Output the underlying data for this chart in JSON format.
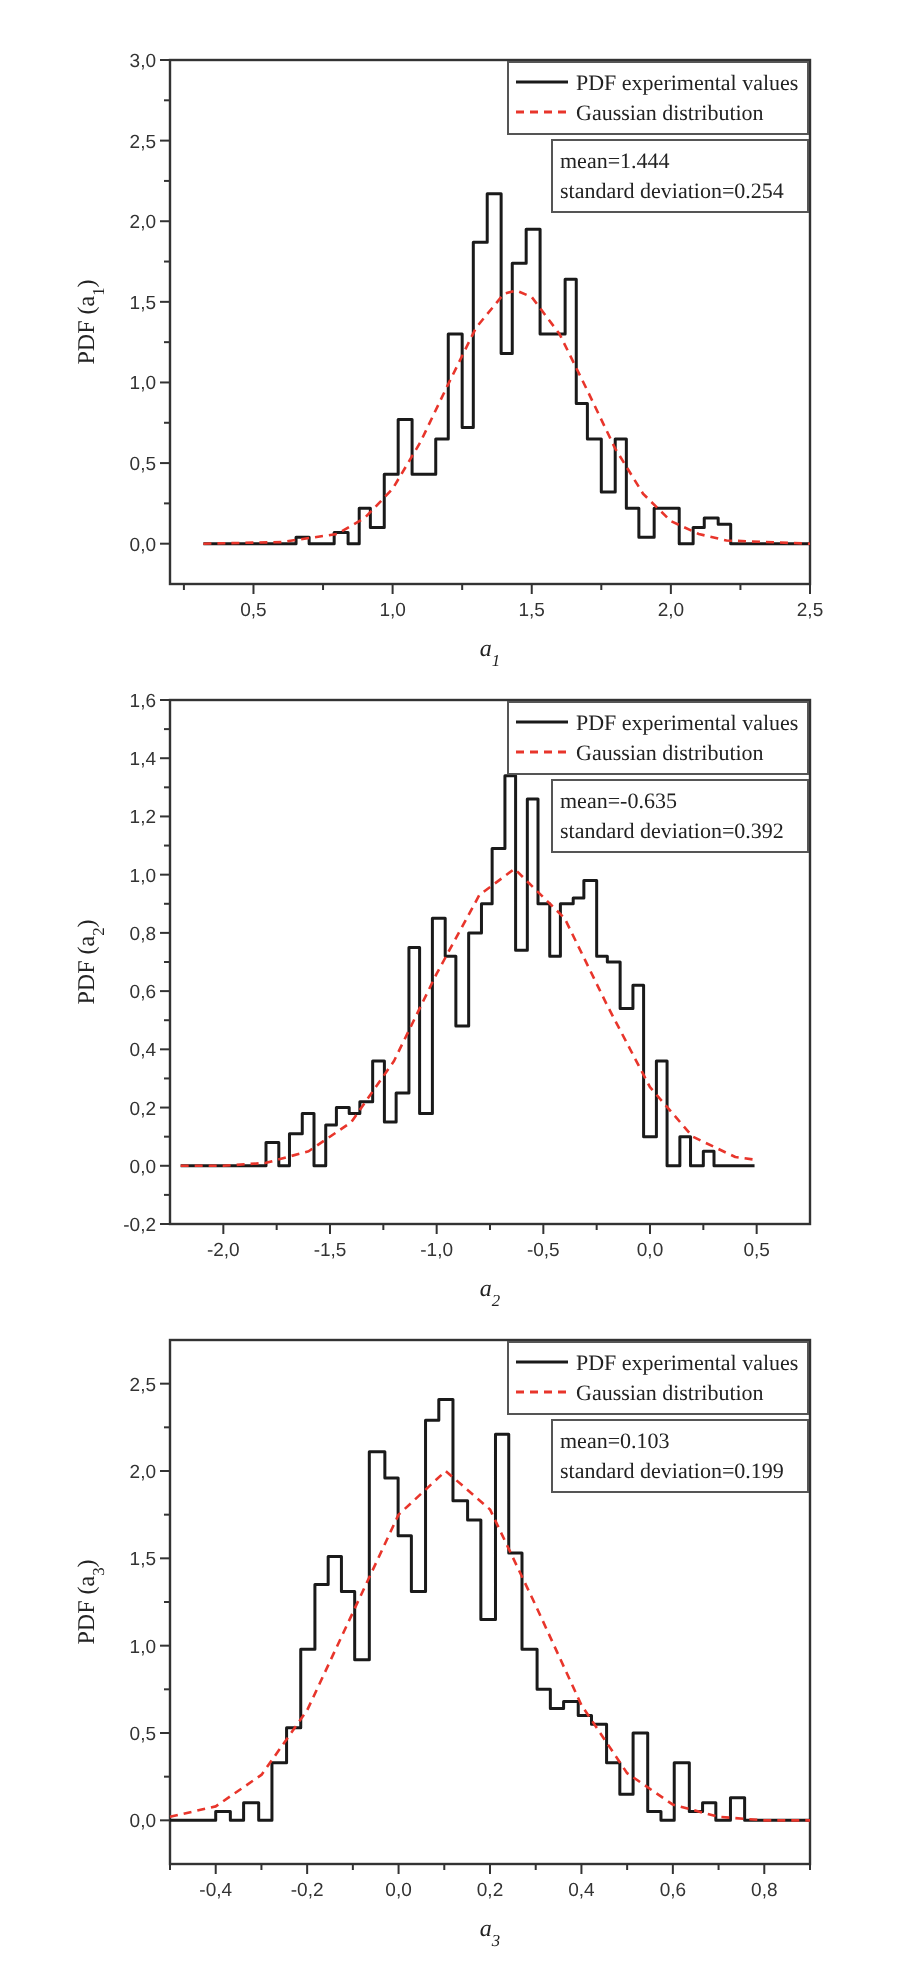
{
  "chart_data": [
    {
      "type": "step",
      "xlabel": "a$_{1}$",
      "ylabel": "PDF (a$_{1}$)",
      "xlim": [
        0.2,
        2.5
      ],
      "ylim": [
        -0.25,
        3.0
      ],
      "xticks": [
        {
          "value": 0.25,
          "label": null
        },
        {
          "value": 0.5,
          "label": "0,5"
        },
        {
          "value": 0.75,
          "label": null
        },
        {
          "value": 1.0,
          "label": "1,0"
        },
        {
          "value": 1.25,
          "label": null
        },
        {
          "value": 1.5,
          "label": "1,5"
        },
        {
          "value": 1.75,
          "label": null
        },
        {
          "value": 2.0,
          "label": "2,0"
        },
        {
          "value": 2.25,
          "label": null
        },
        {
          "value": 2.5,
          "label": "2,5"
        }
      ],
      "yticks": [
        {
          "value": 0,
          "label": "0,0"
        },
        {
          "value": 0.25,
          "label": null
        },
        {
          "value": 0.5,
          "label": "0,5"
        },
        {
          "value": 0.75,
          "label": null
        },
        {
          "value": 1.0,
          "label": "1,0"
        },
        {
          "value": 1.25,
          "label": null
        },
        {
          "value": 1.5,
          "label": "1,5"
        },
        {
          "value": 1.75,
          "label": null
        },
        {
          "value": 2.0,
          "label": "2,0"
        },
        {
          "value": 2.25,
          "label": null
        },
        {
          "value": 2.5,
          "label": "2,5"
        },
        {
          "value": 2.75,
          "label": null
        },
        {
          "value": 3.0,
          "label": "3,0"
        }
      ],
      "legend": "top right",
      "grid": false,
      "annotations": [
        "mean=1.444",
        "standard deviation=0.254"
      ],
      "series": [
        {
          "name": "PDF experimental values",
          "type": "step",
          "color": "#1a1a1a",
          "line_style": "solid",
          "x": [
            0.32,
            0.653,
            0.7,
            0.79,
            0.84,
            0.88,
            0.92,
            0.97,
            1.02,
            1.07,
            1.155,
            1.2,
            1.25,
            1.29,
            1.34,
            1.39,
            1.43,
            1.48,
            1.53,
            1.62,
            1.66,
            1.7,
            1.75,
            1.8,
            1.84,
            1.885,
            1.94,
            2.03,
            2.08,
            2.12,
            2.17,
            2.215,
            2.5
          ],
          "values": [
            0,
            0.04,
            0,
            0.07,
            0,
            0.22,
            0.1,
            0.43,
            0.77,
            0.43,
            0.65,
            1.3,
            0.72,
            1.87,
            2.17,
            1.18,
            1.74,
            1.95,
            1.3,
            1.64,
            0.87,
            0.65,
            0.32,
            0.65,
            0.22,
            0.04,
            0.22,
            0,
            0.1,
            0.16,
            0.12,
            0,
            0
          ]
        },
        {
          "name": "Gaussian distribution",
          "type": "line",
          "color": "#e8352b",
          "line_style": "dashed",
          "x": [
            0.32,
            0.6,
            0.8,
            0.9,
            1.0,
            1.1,
            1.2,
            1.3,
            1.4,
            1.444,
            1.5,
            1.6,
            1.7,
            1.8,
            1.9,
            2.0,
            2.1,
            2.2,
            2.5
          ],
          "values": [
            0,
            0.01,
            0.06,
            0.16,
            0.34,
            0.63,
            0.99,
            1.34,
            1.55,
            1.57,
            1.53,
            1.3,
            0.95,
            0.59,
            0.31,
            0.14,
            0.06,
            0.02,
            0
          ]
        }
      ]
    },
    {
      "type": "step",
      "xlabel": "a$_{2}$",
      "ylabel": "PDF (a$_{2}$)",
      "xlim": [
        -2.25,
        0.75
      ],
      "ylim": [
        -0.2,
        1.6
      ],
      "xticks": [
        {
          "value": -2.0,
          "label": "-2,0"
        },
        {
          "value": -1.75,
          "label": null
        },
        {
          "value": -1.5,
          "label": "-1,5"
        },
        {
          "value": -1.25,
          "label": null
        },
        {
          "value": -1.0,
          "label": "-1,0"
        },
        {
          "value": -0.75,
          "label": null
        },
        {
          "value": -0.5,
          "label": "-0,5"
        },
        {
          "value": -0.25,
          "label": null
        },
        {
          "value": 0,
          "label": "0,0"
        },
        {
          "value": 0.25,
          "label": null
        },
        {
          "value": 0.5,
          "label": "0,5"
        }
      ],
      "yticks": [
        {
          "value": -0.2,
          "label": "-0,2"
        },
        {
          "value": -0.1,
          "label": null
        },
        {
          "value": 0,
          "label": "0,0"
        },
        {
          "value": 0.1,
          "label": null
        },
        {
          "value": 0.2,
          "label": "0,2"
        },
        {
          "value": 0.3,
          "label": null
        },
        {
          "value": 0.4,
          "label": "0,4"
        },
        {
          "value": 0.5,
          "label": null
        },
        {
          "value": 0.6,
          "label": "0,6"
        },
        {
          "value": 0.7,
          "label": null
        },
        {
          "value": 0.8,
          "label": "0,8"
        },
        {
          "value": 0.9,
          "label": null
        },
        {
          "value": 1.0,
          "label": "1,0"
        },
        {
          "value": 1.1,
          "label": null
        },
        {
          "value": 1.2,
          "label": "1,2"
        },
        {
          "value": 1.3,
          "label": null
        },
        {
          "value": 1.4,
          "label": "1,4"
        },
        {
          "value": 1.5,
          "label": null
        },
        {
          "value": 1.6,
          "label": "1,6"
        }
      ],
      "legend": "top right",
      "grid": false,
      "annotations": [
        "mean=-0.635",
        "standard deviation=0.392"
      ],
      "series": [
        {
          "name": "PDF experimental values",
          "type": "step",
          "color": "#1a1a1a",
          "line_style": "solid",
          "x": [
            -2.2,
            -1.8,
            -1.74,
            -1.69,
            -1.63,
            -1.575,
            -1.52,
            -1.47,
            -1.41,
            -1.36,
            -1.3,
            -1.245,
            -1.19,
            -1.13,
            -1.08,
            -1.02,
            -0.96,
            -0.91,
            -0.85,
            -0.79,
            -0.74,
            -0.68,
            -0.63,
            -0.575,
            -0.525,
            -0.47,
            -0.42,
            -0.36,
            -0.31,
            -0.25,
            -0.2,
            -0.14,
            -0.08,
            -0.03,
            0.03,
            0.08,
            0.14,
            0.19,
            0.25,
            0.3,
            0.49
          ],
          "values": [
            0,
            0.08,
            0,
            0.11,
            0.18,
            0,
            0.14,
            0.2,
            0.18,
            0.22,
            0.36,
            0.15,
            0.25,
            0.75,
            0.18,
            0.85,
            0.72,
            0.48,
            0.8,
            0.9,
            1.09,
            1.34,
            0.74,
            1.26,
            0.9,
            0.72,
            0.9,
            0.92,
            0.98,
            0.72,
            0.7,
            0.54,
            0.62,
            0.1,
            0.36,
            0,
            0.1,
            0,
            0.05,
            0,
            0
          ]
        },
        {
          "name": "Gaussian distribution",
          "type": "line",
          "color": "#e8352b",
          "line_style": "dashed",
          "x": [
            -2.2,
            -2.0,
            -1.8,
            -1.6,
            -1.4,
            -1.2,
            -1.0,
            -0.8,
            -0.635,
            -0.4,
            -0.2,
            0.0,
            0.2,
            0.4,
            0.5
          ],
          "values": [
            0,
            0,
            0.01,
            0.05,
            0.15,
            0.36,
            0.66,
            0.93,
            1.02,
            0.85,
            0.55,
            0.27,
            0.1,
            0.03,
            0.02
          ]
        }
      ]
    },
    {
      "type": "step",
      "xlabel": "a$_{3}$",
      "ylabel": "PDF (a$_{3}$)",
      "xlim": [
        -0.5,
        0.9
      ],
      "ylim": [
        -0.25,
        2.75
      ],
      "xticks": [
        {
          "value": -0.5,
          "label": null
        },
        {
          "value": -0.4,
          "label": "-0,4"
        },
        {
          "value": -0.3,
          "label": null
        },
        {
          "value": -0.2,
          "label": "-0,2"
        },
        {
          "value": -0.1,
          "label": null
        },
        {
          "value": 0,
          "label": "0,0"
        },
        {
          "value": 0.1,
          "label": null
        },
        {
          "value": 0.2,
          "label": "0,2"
        },
        {
          "value": 0.3,
          "label": null
        },
        {
          "value": 0.4,
          "label": "0,4"
        },
        {
          "value": 0.5,
          "label": null
        },
        {
          "value": 0.6,
          "label": "0,6"
        },
        {
          "value": 0.7,
          "label": null
        },
        {
          "value": 0.8,
          "label": "0,8"
        },
        {
          "value": 0.9,
          "label": null
        }
      ],
      "yticks": [
        {
          "value": 0,
          "label": "0,0"
        },
        {
          "value": 0.25,
          "label": null
        },
        {
          "value": 0.5,
          "label": "0,5"
        },
        {
          "value": 0.75,
          "label": null
        },
        {
          "value": 1.0,
          "label": "1,0"
        },
        {
          "value": 1.25,
          "label": null
        },
        {
          "value": 1.5,
          "label": "1,5"
        },
        {
          "value": 1.75,
          "label": null
        },
        {
          "value": 2.0,
          "label": "2,0"
        },
        {
          "value": 2.25,
          "label": null
        },
        {
          "value": 2.5,
          "label": "2,5"
        }
      ],
      "legend": "top right",
      "grid": false,
      "annotations": [
        "mean=0.103",
        "standard deviation=0.199"
      ],
      "series": [
        {
          "name": "PDF experimental values",
          "type": "step",
          "color": "#1a1a1a",
          "line_style": "solid",
          "x": [
            -0.5,
            -0.4,
            -0.368,
            -0.339,
            -0.306,
            -0.277,
            -0.245,
            -0.214,
            -0.183,
            -0.154,
            -0.125,
            -0.096,
            -0.064,
            -0.03,
            -0.001,
            0.028,
            0.059,
            0.088,
            0.119,
            0.151,
            0.18,
            0.212,
            0.241,
            0.27,
            0.303,
            0.332,
            0.361,
            0.393,
            0.422,
            0.455,
            0.484,
            0.513,
            0.545,
            0.574,
            0.603,
            0.636,
            0.665,
            0.694,
            0.726,
            0.757,
            0.9
          ],
          "values": [
            0,
            0.05,
            0,
            0.1,
            0,
            0.33,
            0.53,
            0.98,
            1.35,
            1.51,
            1.31,
            0.92,
            2.11,
            1.96,
            1.63,
            1.31,
            2.29,
            2.41,
            1.83,
            1.72,
            1.15,
            2.21,
            1.53,
            0.98,
            0.75,
            0.64,
            0.68,
            0.6,
            0.55,
            0.33,
            0.15,
            0.5,
            0.05,
            0,
            0.33,
            0.05,
            0.1,
            0,
            0.13,
            0,
            0
          ]
        },
        {
          "name": "Gaussian distribution",
          "type": "line",
          "color": "#e8352b",
          "line_style": "dashed",
          "x": [
            -0.5,
            -0.4,
            -0.3,
            -0.2,
            -0.1,
            0.0,
            0.103,
            0.2,
            0.3,
            0.4,
            0.5,
            0.6,
            0.7,
            0.8,
            0.9
          ],
          "values": [
            0.02,
            0.08,
            0.26,
            0.63,
            1.19,
            1.75,
            2.0,
            1.78,
            1.23,
            0.66,
            0.27,
            0.09,
            0.02,
            0,
            0
          ]
        }
      ]
    }
  ]
}
